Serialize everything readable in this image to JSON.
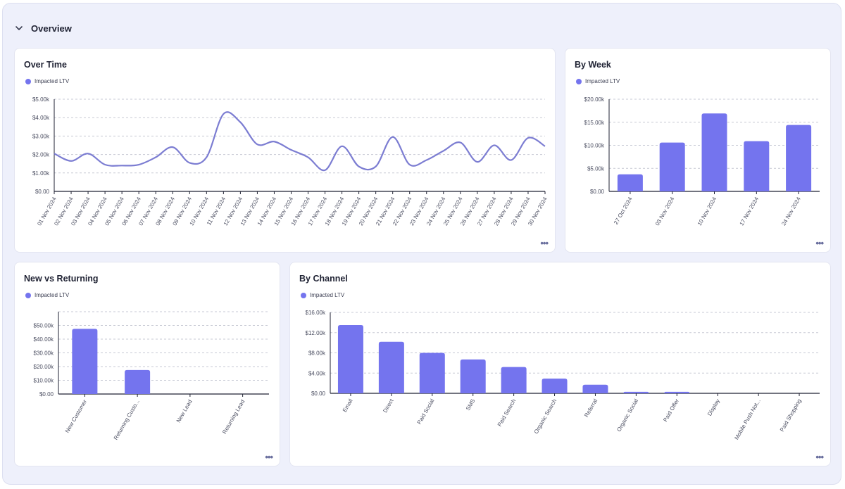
{
  "section": {
    "title": "Overview"
  },
  "colors": {
    "series": "#7474ee",
    "line": "#7c7dd2",
    "grid": "#c7c9d4",
    "axis": "#1f2233",
    "tick": "#4a4d60"
  },
  "chart_data": [
    {
      "id": "over-time",
      "type": "line",
      "title": "Over Time",
      "legend": [
        "Impacted LTV"
      ],
      "legend_position": "top-left",
      "grid": true,
      "categories": [
        "01 Nov 2024",
        "02 Nov 2024",
        "03 Nov 2024",
        "04 Nov 2024",
        "05 Nov 2024",
        "06 Nov 2024",
        "07 Nov 2024",
        "08 Nov 2024",
        "09 Nov 2024",
        "10 Nov 2024",
        "11 Nov 2024",
        "12 Nov 2024",
        "13 Nov 2024",
        "14 Nov 2024",
        "15 Nov 2024",
        "16 Nov 2024",
        "17 Nov 2024",
        "18 Nov 2024",
        "19 Nov 2024",
        "20 Nov 2024",
        "21 Nov 2024",
        "22 Nov 2024",
        "23 Nov 2024",
        "24 Nov 2024",
        "25 Nov 2024",
        "26 Nov 2024",
        "27 Nov 2024",
        "28 Nov 2024",
        "29 Nov 2024",
        "30 Nov 2024"
      ],
      "yticks": [
        "$0.00",
        "$1.00k",
        "$2.00k",
        "$3.00k",
        "$4.00k",
        "$5.00k"
      ],
      "ylim": [
        0,
        5000
      ],
      "series": [
        {
          "name": "Impacted LTV",
          "values": [
            2050,
            1650,
            2050,
            1450,
            1400,
            1450,
            1850,
            2400,
            1550,
            1850,
            4200,
            3750,
            2550,
            2700,
            2250,
            1850,
            1150,
            2450,
            1350,
            1350,
            2950,
            1450,
            1700,
            2200,
            2650,
            1600,
            2500,
            1700,
            2900,
            2450
          ]
        }
      ]
    },
    {
      "id": "by-week",
      "type": "bar",
      "title": "By Week",
      "legend": [
        "Impacted LTV"
      ],
      "legend_position": "top-left",
      "grid": true,
      "categories": [
        "27 Oct 2024",
        "03 Nov 2024",
        "10 Nov 2024",
        "17 Nov 2024",
        "24 Nov 2024"
      ],
      "yticks": [
        "$0.00",
        "$5.00k",
        "$10.00k",
        "$15.00k",
        "$20.00k"
      ],
      "ylim": [
        0,
        20000
      ],
      "series": [
        {
          "name": "Impacted LTV",
          "values": [
            3700,
            10600,
            16900,
            10900,
            14400
          ]
        }
      ]
    },
    {
      "id": "new-vs-returning",
      "type": "bar",
      "title": "New vs Returning",
      "legend": [
        "Impacted LTV"
      ],
      "legend_position": "top-left",
      "grid": true,
      "categories": [
        "New Customer",
        "Returning Custo...",
        "New Lead",
        "Returning Lead"
      ],
      "yticks": [
        "$0.00",
        "$10.00k",
        "$20.00k",
        "$30.00k",
        "$40.00k",
        "$50.00k"
      ],
      "ylim": [
        0,
        60000
      ],
      "series": [
        {
          "name": "Impacted LTV",
          "values": [
            47500,
            17500,
            0,
            0
          ]
        }
      ]
    },
    {
      "id": "by-channel",
      "type": "bar",
      "title": "By Channel",
      "legend": [
        "Impacted LTV"
      ],
      "legend_position": "top-left",
      "grid": true,
      "categories": [
        "Email",
        "Direct",
        "Paid Social",
        "SMS",
        "Paid Search",
        "Organic Search",
        "Referral",
        "Organic Social",
        "Paid Offer",
        "Display",
        "Mobile Push Not...",
        "Paid Shopping"
      ],
      "yticks": [
        "$0.00",
        "$4.00k",
        "$8.00k",
        "$12.00k",
        "$16.00k"
      ],
      "ylim": [
        0,
        16000
      ],
      "series": [
        {
          "name": "Impacted LTV",
          "values": [
            13500,
            10200,
            8000,
            6700,
            5200,
            2900,
            1700,
            300,
            300,
            0,
            0,
            0
          ]
        }
      ]
    }
  ]
}
